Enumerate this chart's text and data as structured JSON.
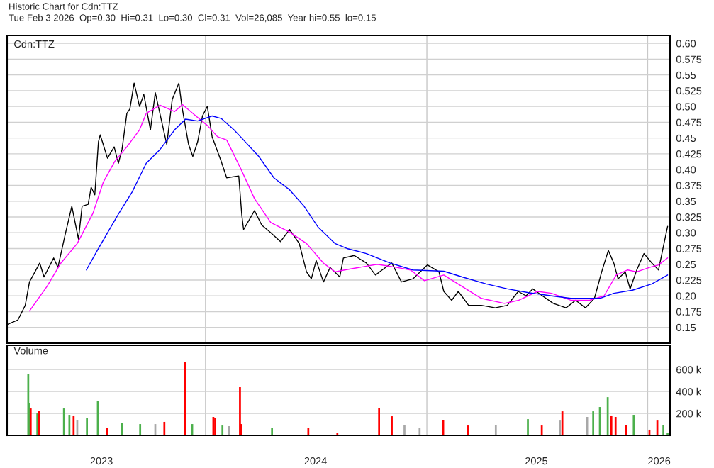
{
  "chart_data": [
    {
      "type": "line",
      "title": "Historic Chart for Cdn:TTZ",
      "subtitle": "Tue Feb 3 2026  Op=0.30  Hi=0.31  Lo=0.30  Cl=0.31  Vol=26,085  Year hi=0.55  lo=0.15",
      "annotations": [
        "Cdn:TTZ"
      ],
      "xlim": [
        "2023-02-07",
        "2026-02-07"
      ],
      "ylim": [
        0.125,
        0.6125
      ],
      "yticks": [
        0.15,
        0.175,
        {
          "value": 0.2,
          "label": "0.20"
        },
        0.225,
        0.25,
        0.275,
        {
          "value": 0.3,
          "label": "0.30"
        },
        0.325,
        0.35,
        0.375,
        {
          "value": 0.4,
          "label": "0.40"
        },
        0.425,
        0.45,
        0.475,
        {
          "value": 0.5,
          "label": "0.50"
        },
        0.525,
        0.55,
        0.575,
        {
          "value": 0.6,
          "label": "0.60"
        }
      ],
      "tick_labels": "y",
      "grid": "y",
      "marker": "none",
      "line_style": "solid",
      "ref_lines": [
        {
          "axis": "x",
          "value": "2024-01-01",
          "color": "#c8c8c8"
        },
        {
          "axis": "x",
          "value": "2025-01-01",
          "color": "#c8c8c8"
        },
        {
          "axis": "x",
          "value": "2026-01-01",
          "color": "#c8c8c8"
        }
      ],
      "series": [
        {
          "type": "line",
          "color": "#000000",
          "x": [
            "2023-02-08",
            "2023-02-25",
            "2023-03-09",
            "2023-03-16",
            "2023-04-02",
            "2023-04-09",
            "2023-04-25",
            "2023-05-02",
            "2023-05-14",
            "2023-05-25",
            "2023-06-05",
            "2023-06-11",
            "2023-06-21",
            "2023-06-26",
            "2023-07-02",
            "2023-07-08",
            "2023-07-11",
            "2023-07-23",
            "2023-08-03",
            "2023-08-10",
            "2023-08-16",
            "2023-08-24",
            "2023-08-29",
            "2023-09-05",
            "2023-09-14",
            "2023-09-21",
            "2023-10-02",
            "2023-10-10",
            "2023-10-22",
            "2023-10-29",
            "2023-11-07",
            "2023-11-18",
            "2023-11-23",
            "2023-12-04",
            "2023-12-11",
            "2023-12-19",
            "2023-12-27",
            "2024-01-04",
            "2024-01-12",
            "2024-01-27",
            "2024-02-05",
            "2024-02-25",
            "2024-03-01",
            "2024-03-04",
            "2024-03-22",
            "2024-04-03",
            "2024-04-18",
            "2024-05-04",
            "2024-05-19",
            "2024-06-04",
            "2024-06-16",
            "2024-06-24",
            "2024-07-02",
            "2024-07-14",
            "2024-07-25",
            "2024-08-10",
            "2024-08-16",
            "2024-09-03",
            "2024-09-23",
            "2024-10-08",
            "2024-10-19",
            "2024-11-04",
            "2024-11-20",
            "2024-12-09",
            "2025-01-02",
            "2025-01-21",
            "2025-01-29",
            "2025-02-11",
            "2025-02-22",
            "2025-03-11",
            "2025-04-01",
            "2025-04-24",
            "2025-05-14",
            "2025-06-01",
            "2025-06-14",
            "2025-06-25",
            "2025-07-11",
            "2025-07-29",
            "2025-08-19",
            "2025-09-04",
            "2025-09-20",
            "2025-10-05",
            "2025-10-17",
            "2025-10-28",
            "2025-11-06",
            "2025-11-13",
            "2025-11-25",
            "2025-12-03",
            "2025-12-14",
            "2025-12-26",
            "2026-01-08",
            "2026-01-19",
            "2026-01-28",
            "2026-02-03"
          ],
          "values": [
            0.155,
            0.162,
            0.185,
            0.222,
            0.252,
            0.23,
            0.26,
            0.245,
            0.297,
            0.342,
            0.29,
            0.342,
            0.345,
            0.372,
            0.36,
            0.444,
            0.455,
            0.418,
            0.436,
            0.41,
            0.432,
            0.489,
            0.496,
            0.537,
            0.5,
            0.519,
            0.463,
            0.522,
            0.47,
            0.44,
            0.511,
            0.537,
            0.5,
            0.44,
            0.421,
            0.444,
            0.485,
            0.5,
            0.452,
            0.413,
            0.387,
            0.39,
            0.328,
            0.305,
            0.335,
            0.312,
            0.3,
            0.286,
            0.305,
            0.283,
            0.238,
            0.227,
            0.256,
            0.222,
            0.245,
            0.23,
            0.26,
            0.264,
            0.252,
            0.233,
            0.241,
            0.252,
            0.222,
            0.227,
            0.249,
            0.238,
            0.207,
            0.193,
            0.207,
            0.185,
            0.185,
            0.181,
            0.185,
            0.207,
            0.2,
            0.211,
            0.2,
            0.188,
            0.181,
            0.193,
            0.181,
            0.196,
            0.238,
            0.272,
            0.252,
            0.227,
            0.238,
            0.211,
            0.241,
            0.267,
            0.252,
            0.241,
            0.283,
            0.31
          ]
        },
        {
          "type": "line",
          "color": "#ff00ff",
          "x": [
            "2023-03-16",
            "2023-04-14",
            "2023-05-07",
            "2023-06-03",
            "2023-06-29",
            "2023-07-16",
            "2023-08-04",
            "2023-08-24",
            "2023-09-14",
            "2023-09-25",
            "2023-10-18",
            "2023-11-11",
            "2023-11-24",
            "2023-12-16",
            "2024-01-04",
            "2024-01-21",
            "2024-02-05",
            "2024-02-28",
            "2024-03-22",
            "2024-04-18",
            "2024-05-19",
            "2024-06-16",
            "2024-07-14",
            "2024-08-02",
            "2024-08-18",
            "2024-09-23",
            "2024-10-11",
            "2024-11-12",
            "2024-12-05",
            "2024-12-28",
            "2025-01-29",
            "2025-02-28",
            "2025-04-01",
            "2025-05-09",
            "2025-06-02",
            "2025-07-03",
            "2025-07-26",
            "2025-08-27",
            "2025-09-27",
            "2025-10-21",
            "2025-11-10",
            "2025-11-29",
            "2025-12-14",
            "2026-01-04",
            "2026-01-19",
            "2026-02-03"
          ],
          "values": [
            0.176,
            0.215,
            0.252,
            0.283,
            0.331,
            0.38,
            0.413,
            0.436,
            0.463,
            0.489,
            0.502,
            0.492,
            0.503,
            0.485,
            0.47,
            0.452,
            0.447,
            0.402,
            0.354,
            0.316,
            0.301,
            0.283,
            0.252,
            0.238,
            0.241,
            0.247,
            0.25,
            0.245,
            0.241,
            0.224,
            0.233,
            0.215,
            0.196,
            0.188,
            0.193,
            0.207,
            0.204,
            0.193,
            0.193,
            0.2,
            0.233,
            0.241,
            0.238,
            0.245,
            0.249,
            0.26
          ]
        },
        {
          "type": "line",
          "color": "#0000ff",
          "x": [
            "2023-06-18",
            "2023-07-08",
            "2023-08-09",
            "2023-09-02",
            "2023-09-25",
            "2023-10-18",
            "2023-11-11",
            "2023-11-29",
            "2023-12-19",
            "2024-01-12",
            "2024-01-27",
            "2024-02-17",
            "2024-02-28",
            "2024-03-29",
            "2024-04-23",
            "2024-05-19",
            "2024-06-12",
            "2024-07-05",
            "2024-08-02",
            "2024-08-22",
            "2024-09-23",
            "2024-11-01",
            "2024-12-09",
            "2025-01-29",
            "2025-02-28",
            "2025-04-09",
            "2025-05-14",
            "2025-06-18",
            "2025-07-26",
            "2025-08-27",
            "2025-10-14",
            "2025-11-06",
            "2025-12-07",
            "2026-01-08",
            "2026-02-03"
          ],
          "values": [
            0.241,
            0.275,
            0.328,
            0.365,
            0.41,
            0.432,
            0.463,
            0.48,
            0.477,
            0.485,
            0.481,
            0.463,
            0.452,
            0.421,
            0.387,
            0.368,
            0.342,
            0.309,
            0.283,
            0.275,
            0.267,
            0.252,
            0.241,
            0.239,
            0.23,
            0.219,
            0.211,
            0.205,
            0.2,
            0.196,
            0.196,
            0.204,
            0.209,
            0.219,
            0.233
          ]
        }
      ]
    },
    {
      "type": "bar",
      "annotations": [
        "Volume"
      ],
      "xlim": [
        "2023-02-07",
        "2026-02-07"
      ],
      "ylim": [
        0,
        820000
      ],
      "yticks": [
        {
          "value": 200000,
          "label": "200 k"
        },
        {
          "value": 400000,
          "label": "400 k"
        },
        {
          "value": 600000,
          "label": "600 k"
        }
      ],
      "xticks": [
        {
          "value": "2023-07-13",
          "label": "2023"
        },
        {
          "value": "2024-07-01",
          "label": "2024"
        },
        {
          "value": "2025-07-01",
          "label": "2025"
        },
        {
          "value": "2026-01-20",
          "label": "2026"
        }
      ],
      "grid": "y",
      "ref_lines": [
        {
          "axis": "x",
          "value": "2024-01-01",
          "color": "#c8c8c8"
        },
        {
          "axis": "x",
          "value": "2025-01-01",
          "color": "#c8c8c8"
        },
        {
          "axis": "x",
          "value": "2026-01-01",
          "color": "#c8c8c8"
        }
      ],
      "x": [
        "2023-03-14",
        "2023-03-16",
        "2023-03-18",
        "2023-03-29",
        "2023-04-01",
        "2023-05-12",
        "2023-05-21",
        "2023-05-28",
        "2023-06-03",
        "2023-06-19",
        "2023-07-07",
        "2023-07-22",
        "2023-08-16",
        "2023-09-15",
        "2023-10-10",
        "2023-10-25",
        "2023-11-28",
        "2023-12-10",
        "2024-01-14",
        "2024-01-17",
        "2024-01-29",
        "2024-02-09",
        "2024-02-27",
        "2024-02-29",
        "2024-04-20",
        "2024-06-19",
        "2024-08-06",
        "2024-10-14",
        "2024-11-04",
        "2024-11-25",
        "2024-12-20",
        "2025-01-28",
        "2025-03-10",
        "2025-04-25",
        "2025-06-17",
        "2025-07-10",
        "2025-08-09",
        "2025-08-13",
        "2025-09-23",
        "2025-10-03",
        "2025-10-14",
        "2025-10-27",
        "2025-11-02",
        "2025-11-09",
        "2025-11-26",
        "2025-12-09",
        "2026-01-04",
        "2026-01-17",
        "2026-01-27",
        "2026-02-03"
      ],
      "values": [
        561000,
        297000,
        245000,
        200000,
        226000,
        245000,
        187000,
        181000,
        142000,
        155000,
        310000,
        71000,
        110000,
        103000,
        103000,
        123000,
        665000,
        103000,
        168000,
        155000,
        90000,
        84000,
        439000,
        103000,
        65000,
        71000,
        26000,
        252000,
        174000,
        97000,
        65000,
        142000,
        90000,
        97000,
        148000,
        90000,
        135000,
        219000,
        168000,
        219000,
        258000,
        348000,
        181000,
        168000,
        97000,
        187000,
        52000,
        135000,
        97000,
        26000
      ],
      "colors": [
        "#4cb04c",
        "#4cb04c",
        "#ff0000",
        "#4cb04c",
        "#ff0000",
        "#4cb04c",
        "#4cb04c",
        "#ff0000",
        "#a8a8a8",
        "#4cb04c",
        "#4cb04c",
        "#ff0000",
        "#4cb04c",
        "#4cb04c",
        "#a8a8a8",
        "#ff0000",
        "#ff0000",
        "#4cb04c",
        "#ff0000",
        "#ff0000",
        "#4cb04c",
        "#a8a8a8",
        "#ff0000",
        "#ff0000",
        "#4cb04c",
        "#ff0000",
        "#ff0000",
        "#ff0000",
        "#ff0000",
        "#a8a8a8",
        "#a8a8a8",
        "#ff0000",
        "#ff0000",
        "#a8a8a8",
        "#4cb04c",
        "#ff0000",
        "#a8a8a8",
        "#ff0000",
        "#a8a8a8",
        "#4cb04c",
        "#4cb04c",
        "#4cb04c",
        "#ff0000",
        "#ff0000",
        "#ff0000",
        "#4cb04c",
        "#ff0000",
        "#ff0000",
        "#4cb04c",
        "#4cb04c"
      ]
    }
  ]
}
